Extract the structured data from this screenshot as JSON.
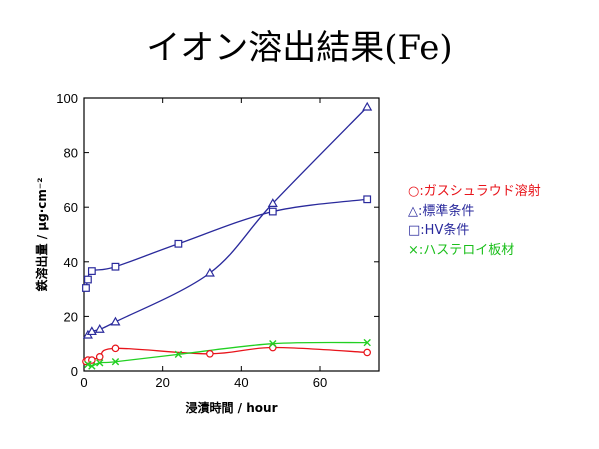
{
  "title": "イオン溶出結果(Fe)",
  "chart_data": {
    "type": "scatter",
    "title": "イオン溶出結果(Fe)",
    "xlabel": "浸漬時間 / hour",
    "ylabel": "鉄溶出量 / μg·cm⁻²",
    "xlim": [
      0,
      75
    ],
    "ylim": [
      0,
      100
    ],
    "xticks": [
      0,
      20,
      40,
      60
    ],
    "yticks": [
      0,
      20,
      40,
      60,
      80,
      100
    ],
    "grid": false,
    "legend_position": "right",
    "series": [
      {
        "name": "○:ガスシュラウド溶射",
        "marker": "circle",
        "color": "#e8141b",
        "x": [
          0.5,
          1,
          2,
          4,
          8,
          32,
          48,
          72
        ],
        "y": [
          3.5,
          4.0,
          4.0,
          5.2,
          8.3,
          6.3,
          8.6,
          6.8
        ]
      },
      {
        "name": "△:標準条件",
        "marker": "triangle",
        "color": "#2a2a9c",
        "x": [
          1,
          2,
          4,
          8,
          32,
          48,
          72
        ],
        "y": [
          13.2,
          14.5,
          15.3,
          18.0,
          35.9,
          61.4,
          96.7
        ]
      },
      {
        "name": "□:HV条件",
        "marker": "square",
        "color": "#2a2a9c",
        "x": [
          0.5,
          1,
          2,
          8,
          24,
          48,
          72
        ],
        "y": [
          30.4,
          33.5,
          36.6,
          38.2,
          46.6,
          58.4,
          62.9
        ]
      },
      {
        "name": "×:ハステロイ板材",
        "marker": "x",
        "color": "#22d022",
        "x": [
          1,
          2,
          4,
          8,
          24,
          48,
          72
        ],
        "y": [
          2.4,
          1.8,
          3.0,
          3.4,
          6.1,
          10.0,
          10.4
        ]
      }
    ]
  }
}
